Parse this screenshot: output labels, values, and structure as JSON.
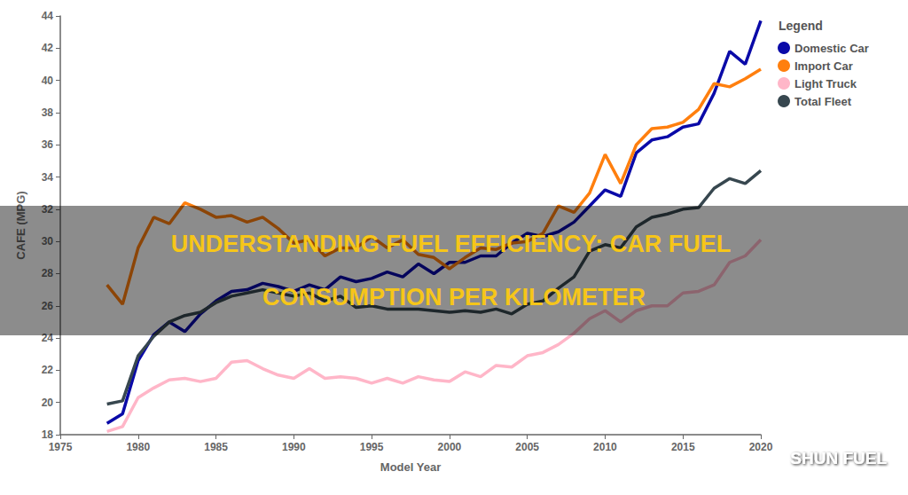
{
  "chart_data": {
    "type": "line",
    "title": "UNDERSTANDING FUEL EFFICIENCY: CAR FUEL CONSUMPTION PER KILOMETER",
    "x_label": "Model Year",
    "y_label": "CAFE (MPG)",
    "annotations": [
      "Legend",
      "SHUN FUEL"
    ],
    "x": [
      1978,
      1979,
      1980,
      1981,
      1982,
      1983,
      1984,
      1985,
      1986,
      1987,
      1988,
      1989,
      1990,
      1991,
      1992,
      1993,
      1994,
      1995,
      1996,
      1997,
      1998,
      1999,
      2000,
      2001,
      2002,
      2003,
      2004,
      2005,
      2006,
      2007,
      2008,
      2009,
      2010,
      2011,
      2012,
      2013,
      2014,
      2015,
      2016,
      2017,
      2018,
      2019,
      2020
    ],
    "series": [
      {
        "name": "Domestic Car",
        "color": "#0a0aa8",
        "values": [
          18.7,
          19.3,
          22.6,
          24.2,
          25.0,
          24.4,
          25.5,
          26.3,
          26.9,
          27.0,
          27.4,
          27.2,
          26.9,
          27.3,
          27.0,
          27.8,
          27.5,
          27.7,
          28.1,
          27.8,
          28.6,
          28.0,
          28.7,
          28.7,
          29.1,
          29.1,
          29.9,
          30.5,
          30.3,
          30.6,
          31.2,
          32.2,
          33.2,
          32.8,
          35.5,
          36.3,
          36.5,
          37.1,
          37.3,
          39.2,
          41.8,
          41.0,
          43.7
        ]
      },
      {
        "name": "Import Car",
        "color": "#ff7f0e",
        "values": [
          27.3,
          26.1,
          29.6,
          31.5,
          31.1,
          32.4,
          32.0,
          31.5,
          31.6,
          31.2,
          31.5,
          30.8,
          29.9,
          30.1,
          29.1,
          29.6,
          29.6,
          30.3,
          29.6,
          30.1,
          29.2,
          29.0,
          28.3,
          29.0,
          29.6,
          29.5,
          29.9,
          30.0,
          30.5,
          32.2,
          31.8,
          33.0,
          35.4,
          33.6,
          36.0,
          37.0,
          37.1,
          37.4,
          38.2,
          39.8,
          39.6,
          40.1,
          40.7
        ]
      },
      {
        "name": "Light Truck",
        "color": "#ffb6c8",
        "values": [
          18.2,
          18.5,
          20.3,
          20.9,
          21.4,
          21.5,
          21.3,
          21.5,
          22.5,
          22.6,
          22.1,
          21.7,
          21.5,
          22.1,
          21.5,
          21.6,
          21.5,
          21.2,
          21.5,
          21.2,
          21.6,
          21.4,
          21.3,
          21.9,
          21.6,
          22.3,
          22.2,
          22.9,
          23.1,
          23.6,
          24.3,
          25.2,
          25.7,
          25.0,
          25.7,
          26.0,
          26.0,
          26.8,
          26.9,
          27.3,
          28.7,
          29.1,
          30.1
        ]
      },
      {
        "name": "Total Fleet",
        "color": "#37474f",
        "values": [
          19.9,
          20.1,
          22.9,
          24.1,
          25.0,
          25.4,
          25.6,
          26.2,
          26.6,
          26.8,
          27.0,
          26.8,
          26.6,
          26.8,
          26.3,
          26.6,
          25.9,
          26.0,
          25.8,
          25.8,
          25.8,
          25.7,
          25.6,
          25.7,
          25.6,
          25.8,
          25.5,
          26.1,
          26.3,
          27.1,
          27.8,
          29.4,
          29.8,
          29.6,
          30.9,
          31.5,
          31.7,
          32.0,
          32.1,
          33.3,
          33.9,
          33.6,
          34.4
        ]
      }
    ],
    "xlim": [
      1975,
      2020
    ],
    "xticks": [
      1975,
      1980,
      1985,
      1990,
      1995,
      2000,
      2005,
      2010,
      2015,
      2020
    ],
    "ylim": [
      18,
      44
    ],
    "yticks": [
      18,
      20,
      22,
      24,
      26,
      28,
      30,
      32,
      34,
      36,
      38,
      40,
      42,
      44
    ],
    "grid": false,
    "legend": "right"
  }
}
